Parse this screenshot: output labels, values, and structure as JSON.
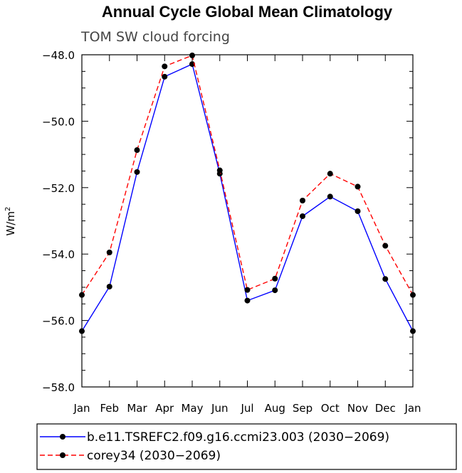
{
  "chart_data": {
    "type": "line",
    "title": "Annual Cycle Global Mean Climatology",
    "subtitle": "TOM SW cloud forcing",
    "ylabel": "W/m",
    "ylabel_superscript": "2",
    "xlabel": "",
    "categories": [
      "Jan",
      "Feb",
      "Mar",
      "Apr",
      "May",
      "Jun",
      "Jul",
      "Aug",
      "Sep",
      "Oct",
      "Nov",
      "Dec",
      "Jan"
    ],
    "ylim": [
      -58.0,
      -48.0
    ],
    "yticks": [
      -48.0,
      -50.0,
      -52.0,
      -54.0,
      -56.0,
      -58.0
    ],
    "ytick_labels": [
      "−48.0",
      "−50.0",
      "−52.0",
      "−54.0",
      "−56.0",
      "−58.0"
    ],
    "series": [
      {
        "name": "b.e11.TSREFC2.f09.g16.ccmi23.003 (2030−2069)",
        "color": "#0000ff",
        "dash": "solid",
        "values": [
          -56.32,
          -54.98,
          -51.53,
          -48.66,
          -48.28,
          -51.58,
          -55.4,
          -55.09,
          -52.86,
          -52.27,
          -52.71,
          -54.75,
          -56.32
        ]
      },
      {
        "name": "corey34 (2030−2069)",
        "color": "#ff0000",
        "dash": "dashed",
        "values": [
          -55.23,
          -53.95,
          -50.87,
          -48.35,
          -48.02,
          -51.48,
          -55.08,
          -54.74,
          -52.39,
          -51.58,
          -51.97,
          -53.75,
          -55.23
        ]
      }
    ],
    "legend_position": "bottom"
  }
}
